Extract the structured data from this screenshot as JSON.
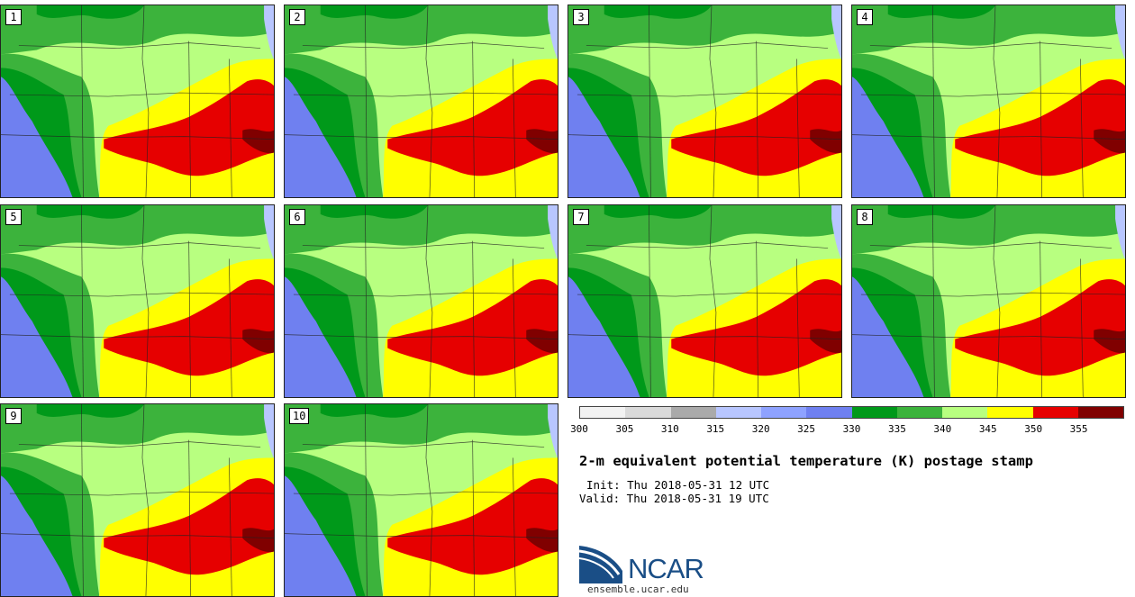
{
  "figure": {
    "title": "2-m equivalent potential temperature (K) postage stamp",
    "init": "Init: Thu 2018-05-31 12 UTC",
    "valid": "Valid: Thu 2018-05-31 19 UTC",
    "organization": "NCAR",
    "website": "ensemble.ucar.edu"
  },
  "members": [
    "1",
    "2",
    "3",
    "4",
    "5",
    "6",
    "7",
    "8",
    "9",
    "10"
  ],
  "colorbar": {
    "ticks": [
      "300",
      "305",
      "310",
      "315",
      "320",
      "325",
      "330",
      "335",
      "340",
      "345",
      "350",
      "355"
    ],
    "colors": [
      "#f2f2f2",
      "#dadada",
      "#aaaaaa",
      "#b8c6ff",
      "#8ea2ff",
      "#6f80f0",
      "#00991a",
      "#3cb33c",
      "#b8ff80",
      "#ffff00",
      "#e60000",
      "#800000"
    ]
  }
}
